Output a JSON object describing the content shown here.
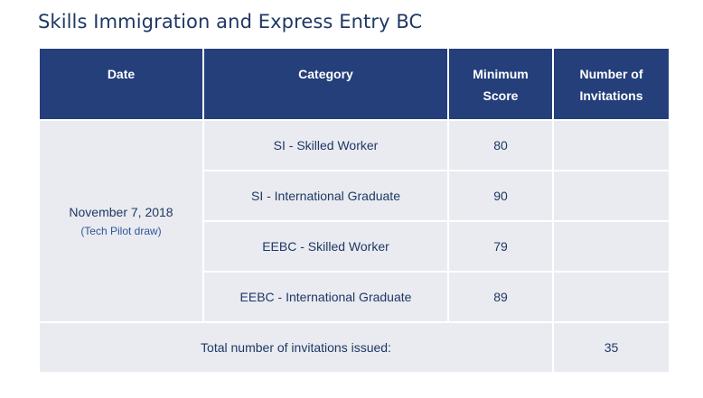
{
  "title": "Skills Immigration and Express Entry BC",
  "table": {
    "headers": {
      "date": "Date",
      "category": "Category",
      "minimum_score_line1": "Minimum",
      "minimum_score_line2": "Score",
      "invitations_line1": "Number of",
      "invitations_line2": "Invitations"
    },
    "date": "November 7, 2018",
    "date_note": "(Tech Pilot draw)",
    "rows": [
      {
        "category": "SI - Skilled Worker",
        "minimum_score": "80",
        "invitations": ""
      },
      {
        "category": "SI - International Graduate",
        "minimum_score": "90",
        "invitations": ""
      },
      {
        "category": "EEBC - Skilled Worker",
        "minimum_score": "79",
        "invitations": ""
      },
      {
        "category": "EEBC - International Graduate",
        "minimum_score": "89",
        "invitations": ""
      }
    ],
    "total_label": "Total number of invitations issued:",
    "total_value": "35"
  }
}
